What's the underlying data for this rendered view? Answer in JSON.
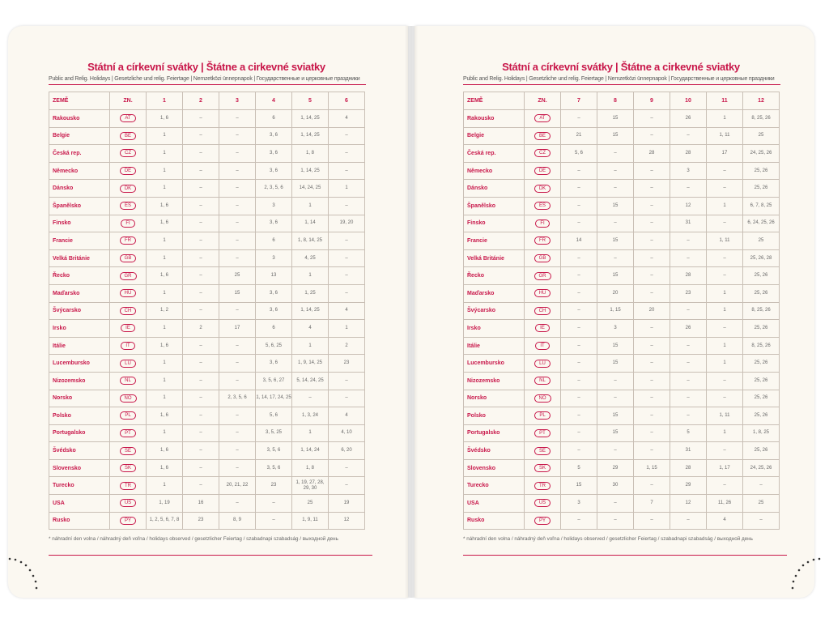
{
  "pages": [
    {
      "title": "Státní a církevní svátky | Štátne a cirkevné sviatky",
      "subtitle": "Public and Relig. Holidays | Gesetzliche und relig. Feiertage | Nemzetközi ünnepnapok | Государственные и церковные праздники",
      "table": {
        "header": [
          "ZEMĚ",
          "ZN.",
          "1",
          "2",
          "3",
          "4",
          "5",
          "6"
        ],
        "rows": [
          [
            "Rakousko",
            "AT",
            "1, 6",
            "–",
            "–",
            "6",
            "1, 14, 25",
            "4"
          ],
          [
            "Belgie",
            "BE",
            "1",
            "–",
            "–",
            "3, 6",
            "1, 14, 25",
            "–"
          ],
          [
            "Česká rep.",
            "CZ",
            "1",
            "–",
            "–",
            "3, 6",
            "1, 8",
            "–"
          ],
          [
            "Německo",
            "DE",
            "1",
            "–",
            "–",
            "3, 6",
            "1, 14, 25",
            "–"
          ],
          [
            "Dánsko",
            "DK",
            "1",
            "–",
            "–",
            "2, 3, 5, 6",
            "14, 24, 25",
            "1"
          ],
          [
            "Španělsko",
            "ES",
            "1, 6",
            "–",
            "–",
            "3",
            "1",
            "–"
          ],
          [
            "Finsko",
            "FI",
            "1, 6",
            "–",
            "–",
            "3, 6",
            "1, 14",
            "19, 20"
          ],
          [
            "Francie",
            "FR",
            "1",
            "–",
            "–",
            "6",
            "1, 8, 14, 25",
            "–"
          ],
          [
            "Velká Británie",
            "GB",
            "1",
            "–",
            "–",
            "3",
            "4, 25",
            "–"
          ],
          [
            "Řecko",
            "GR",
            "1, 6",
            "–",
            "25",
            "13",
            "1",
            "–"
          ],
          [
            "Maďarsko",
            "HU",
            "1",
            "–",
            "15",
            "3, 6",
            "1, 25",
            "–"
          ],
          [
            "Švýcarsko",
            "CH",
            "1, 2",
            "–",
            "–",
            "3, 6",
            "1, 14, 25",
            "4"
          ],
          [
            "Irsko",
            "IE",
            "1",
            "2",
            "17",
            "6",
            "4",
            "1"
          ],
          [
            "Itálie",
            "IT",
            "1, 6",
            "–",
            "–",
            "5, 6, 25",
            "1",
            "2"
          ],
          [
            "Lucembursko",
            "LU",
            "1",
            "–",
            "–",
            "3, 6",
            "1, 9, 14, 25",
            "23"
          ],
          [
            "Nizozemsko",
            "NL",
            "1",
            "–",
            "–",
            "3, 5, 6, 27",
            "5, 14, 24, 25",
            "–"
          ],
          [
            "Norsko",
            "NO",
            "1",
            "–",
            "2, 3, 5, 6",
            "1, 14, 17, 24, 25",
            "–",
            "–"
          ],
          [
            "Polsko",
            "PL",
            "1, 6",
            "–",
            "–",
            "5, 6",
            "1, 3, 24",
            "4"
          ],
          [
            "Portugalsko",
            "PT",
            "1",
            "–",
            "–",
            "3, 5, 25",
            "1",
            "4, 10"
          ],
          [
            "Švédsko",
            "SE",
            "1, 6",
            "–",
            "–",
            "3, 5, 6",
            "1, 14, 24",
            "6, 20"
          ],
          [
            "Slovensko",
            "SK",
            "1, 6",
            "–",
            "–",
            "3, 5, 6",
            "1, 8",
            "–"
          ],
          [
            "Turecko",
            "TR",
            "1",
            "–",
            "20, 21, 22",
            "23",
            "1, 19, 27, 28, 29, 30",
            "–"
          ],
          [
            "USA",
            "US",
            "1, 19",
            "16",
            "–",
            "–",
            "25",
            "19"
          ],
          [
            "Rusko",
            "PY",
            "1, 2, 5, 6, 7, 8",
            "23",
            "8, 9",
            "–",
            "1, 9, 11",
            "12"
          ]
        ]
      },
      "footnote": "* náhradní den volna / náhradný deň voľna / holidays observed / gesetzlicher Feiertag / szabadnapi szabadság / выходной день"
    },
    {
      "title": "Státní a církevní svátky | Štátne a cirkevné sviatky",
      "subtitle": "Public and Relig. Holidays | Gesetzliche und relig. Feiertage | Nemzetközi ünnepnapok | Государственные и церковные праздники",
      "table": {
        "header": [
          "ZEMĚ",
          "ZN.",
          "7",
          "8",
          "9",
          "10",
          "11",
          "12"
        ],
        "rows": [
          [
            "Rakousko",
            "AT",
            "–",
            "15",
            "–",
            "26",
            "1",
            "8, 25, 26"
          ],
          [
            "Belgie",
            "BE",
            "21",
            "15",
            "–",
            "–",
            "1, 11",
            "25"
          ],
          [
            "Česká rep.",
            "CZ",
            "5, 6",
            "–",
            "28",
            "28",
            "17",
            "24, 25, 26"
          ],
          [
            "Německo",
            "DE",
            "–",
            "–",
            "–",
            "3",
            "–",
            "25, 26"
          ],
          [
            "Dánsko",
            "DK",
            "–",
            "–",
            "–",
            "–",
            "–",
            "25, 26"
          ],
          [
            "Španělsko",
            "ES",
            "–",
            "15",
            "–",
            "12",
            "1",
            "6, 7, 8, 25"
          ],
          [
            "Finsko",
            "FI",
            "–",
            "–",
            "–",
            "31",
            "–",
            "6, 24, 25, 26"
          ],
          [
            "Francie",
            "FR",
            "14",
            "15",
            "–",
            "–",
            "1, 11",
            "25"
          ],
          [
            "Velká Británie",
            "GB",
            "–",
            "–",
            "–",
            "–",
            "–",
            "25, 26, 28"
          ],
          [
            "Řecko",
            "GR",
            "–",
            "15",
            "–",
            "28",
            "–",
            "25, 26"
          ],
          [
            "Maďarsko",
            "HU",
            "–",
            "20",
            "–",
            "23",
            "1",
            "25, 26"
          ],
          [
            "Švýcarsko",
            "CH",
            "–",
            "1, 15",
            "20",
            "–",
            "1",
            "8, 25, 26"
          ],
          [
            "Irsko",
            "IE",
            "–",
            "3",
            "–",
            "26",
            "–",
            "25, 26"
          ],
          [
            "Itálie",
            "IT",
            "–",
            "15",
            "–",
            "–",
            "1",
            "8, 25, 26"
          ],
          [
            "Lucembursko",
            "LU",
            "–",
            "15",
            "–",
            "–",
            "1",
            "25, 26"
          ],
          [
            "Nizozemsko",
            "NL",
            "–",
            "–",
            "–",
            "–",
            "–",
            "25, 26"
          ],
          [
            "Norsko",
            "NO",
            "–",
            "–",
            "–",
            "–",
            "–",
            "25, 26"
          ],
          [
            "Polsko",
            "PL",
            "–",
            "15",
            "–",
            "–",
            "1, 11",
            "25, 26"
          ],
          [
            "Portugalsko",
            "PT",
            "–",
            "15",
            "–",
            "5",
            "1",
            "1, 8, 25"
          ],
          [
            "Švédsko",
            "SE",
            "–",
            "–",
            "–",
            "31",
            "–",
            "25, 26"
          ],
          [
            "Slovensko",
            "SK",
            "5",
            "29",
            "1, 15",
            "28",
            "1, 17",
            "24, 25, 26"
          ],
          [
            "Turecko",
            "TR",
            "15",
            "30",
            "–",
            "29",
            "–",
            "–"
          ],
          [
            "USA",
            "US",
            "3",
            "–",
            "7",
            "12",
            "11, 26",
            "25"
          ],
          [
            "Rusko",
            "PY",
            "–",
            "–",
            "–",
            "–",
            "4",
            "–"
          ]
        ]
      },
      "footnote": "* náhradní den volna / náhradný deň voľna / holidays observed / gesetzlicher Feiertag / szabadnapi szabadság / выходной день"
    }
  ]
}
